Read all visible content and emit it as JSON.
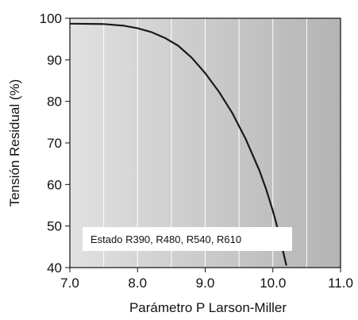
{
  "chart_data": {
    "type": "line",
    "title": "",
    "xlabel": "Parámetro P Larson-Miller",
    "ylabel": "Tensión Residual (%)",
    "xlim": [
      7.0,
      11.0
    ],
    "ylim": [
      40,
      100
    ],
    "xticks": [
      "7.0",
      "8.0",
      "9.0",
      "10.0",
      "11.0"
    ],
    "yticks": [
      "40",
      "50",
      "60",
      "70",
      "80",
      "90",
      "100"
    ],
    "grid": "vertical",
    "background": "gradient light-to-dark gray",
    "series": [
      {
        "color": "#1a1a1a",
        "x": [
          7.0,
          7.5,
          7.8,
          8.0,
          8.2,
          8.4,
          8.6,
          8.8,
          9.0,
          9.2,
          9.4,
          9.6,
          9.8,
          9.9,
          10.0,
          10.05,
          10.1,
          10.15,
          10.2
        ],
        "y": [
          98.7,
          98.6,
          98.2,
          97.6,
          96.7,
          95.3,
          93.4,
          90.5,
          86.8,
          82.4,
          77.2,
          70.9,
          63.4,
          58.9,
          53.6,
          50.7,
          47.5,
          44.0,
          40.5
        ]
      }
    ],
    "annotation": "Estado R390, R480, R540, R610"
  }
}
